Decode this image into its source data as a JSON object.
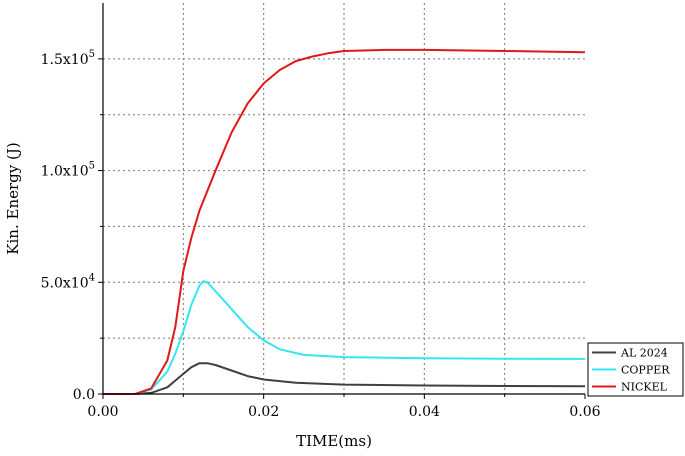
{
  "chart_data": {
    "type": "line",
    "title": "",
    "xlabel": "TIME(ms)",
    "ylabel": "Kin. Energy (J)",
    "xlim": [
      0,
      0.06
    ],
    "ylim": [
      0,
      175000
    ],
    "grid": true,
    "legend_position": "bottom-right",
    "x_ticks": [
      {
        "value": 0.0,
        "label": "0.00"
      },
      {
        "value": 0.02,
        "label": "0.02"
      },
      {
        "value": 0.04,
        "label": "0.04"
      },
      {
        "value": 0.06,
        "label": "0.06"
      }
    ],
    "y_ticks": [
      {
        "value": 0,
        "mantissa": "0.0",
        "exponent": ""
      },
      {
        "value": 50000,
        "mantissa": "5.0x10",
        "exponent": "4"
      },
      {
        "value": 100000,
        "mantissa": "1.0x10",
        "exponent": "5"
      },
      {
        "value": 150000,
        "mantissa": "1.5x10",
        "exponent": "5"
      }
    ],
    "series": [
      {
        "name": "AL 2024",
        "color": "#404040",
        "x": [
          0,
          0.004,
          0.006,
          0.008,
          0.01,
          0.011,
          0.012,
          0.013,
          0.014,
          0.016,
          0.018,
          0.02,
          0.024,
          0.03,
          0.04,
          0.05,
          0.06
        ],
        "y": [
          0,
          0,
          500,
          3000,
          9000,
          12000,
          13800,
          13800,
          13000,
          10500,
          8000,
          6500,
          5000,
          4200,
          3800,
          3600,
          3500
        ]
      },
      {
        "name": "COPPER",
        "color": "#33e6f2",
        "x": [
          0,
          0.004,
          0.006,
          0.008,
          0.009,
          0.01,
          0.011,
          0.012,
          0.0125,
          0.013,
          0.014,
          0.016,
          0.018,
          0.02,
          0.022,
          0.025,
          0.03,
          0.04,
          0.05,
          0.06
        ],
        "y": [
          0,
          0,
          2000,
          10000,
          18000,
          28000,
          40000,
          48500,
          50500,
          50000,
          46000,
          38000,
          30000,
          24000,
          20000,
          17500,
          16500,
          16000,
          15800,
          15700
        ]
      },
      {
        "name": "NICKEL",
        "color": "#e01818",
        "x": [
          0,
          0.004,
          0.006,
          0.008,
          0.009,
          0.01,
          0.011,
          0.012,
          0.014,
          0.016,
          0.018,
          0.02,
          0.022,
          0.024,
          0.026,
          0.028,
          0.03,
          0.035,
          0.04,
          0.05,
          0.06
        ],
        "y": [
          0,
          0,
          2500,
          15000,
          30000,
          55000,
          70000,
          82000,
          100000,
          117000,
          130000,
          139000,
          145000,
          149000,
          151000,
          152500,
          153500,
          154000,
          154000,
          153500,
          153000
        ]
      }
    ]
  }
}
